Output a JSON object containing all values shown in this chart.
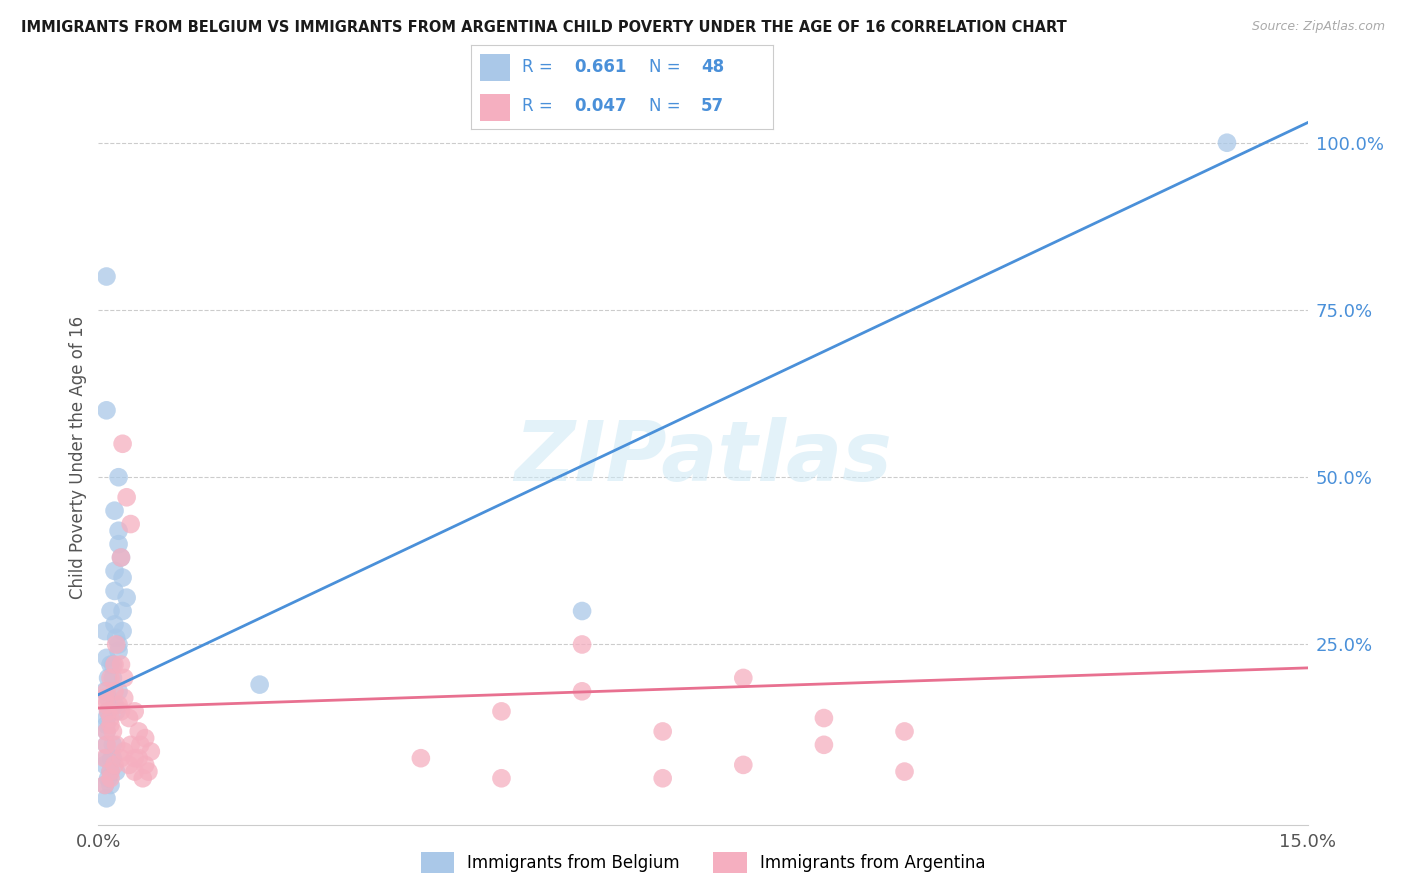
{
  "title": "IMMIGRANTS FROM BELGIUM VS IMMIGRANTS FROM ARGENTINA CHILD POVERTY UNDER THE AGE OF 16 CORRELATION CHART",
  "source": "Source: ZipAtlas.com",
  "ylabel": "Child Poverty Under the Age of 16",
  "yticklabels_right": [
    "25.0%",
    "50.0%",
    "75.0%",
    "100.0%"
  ],
  "yticks": [
    0.25,
    0.5,
    0.75,
    1.0
  ],
  "xlim": [
    0.0,
    0.15
  ],
  "ylim": [
    -0.02,
    1.08
  ],
  "belgium_color": "#aac8e8",
  "argentina_color": "#f5afc0",
  "belgium_line_color": "#4a90d9",
  "argentina_line_color": "#e87090",
  "legend_R_bel": "0.661",
  "legend_N_bel": "48",
  "legend_R_arg": "0.047",
  "legend_N_arg": "57",
  "watermark": "ZIPatlas",
  "bel_line_x": [
    0.0,
    0.15
  ],
  "bel_line_y": [
    0.175,
    1.03
  ],
  "arg_line_x": [
    0.0,
    0.15
  ],
  "arg_line_y": [
    0.155,
    0.215
  ],
  "belgium_scatter_x": [
    0.0008,
    0.001,
    0.0012,
    0.0015,
    0.0018,
    0.002,
    0.0022,
    0.0008,
    0.001,
    0.0015,
    0.0018,
    0.002,
    0.0025,
    0.001,
    0.0008,
    0.0012,
    0.0015,
    0.001,
    0.002,
    0.0025,
    0.001,
    0.002,
    0.0025,
    0.003,
    0.0025,
    0.003,
    0.0035,
    0.0028,
    0.002,
    0.003,
    0.0008,
    0.001,
    0.0015,
    0.001,
    0.0012,
    0.0018,
    0.0022,
    0.0016,
    0.0012,
    0.0025,
    0.0022,
    0.0018,
    0.06,
    0.02,
    0.001,
    0.0025,
    0.001,
    0.14
  ],
  "belgium_scatter_y": [
    0.18,
    0.14,
    0.2,
    0.22,
    0.08,
    0.16,
    0.26,
    0.27,
    0.12,
    0.3,
    0.22,
    0.33,
    0.18,
    0.1,
    0.07,
    0.05,
    0.06,
    0.08,
    0.28,
    0.25,
    0.23,
    0.36,
    0.4,
    0.35,
    0.42,
    0.3,
    0.32,
    0.38,
    0.45,
    0.27,
    0.04,
    0.02,
    0.04,
    0.13,
    0.15,
    0.1,
    0.06,
    0.08,
    0.17,
    0.24,
    0.15,
    0.2,
    0.3,
    0.19,
    0.6,
    0.5,
    0.8,
    1.0
  ],
  "argentina_scatter_x": [
    0.0008,
    0.0012,
    0.001,
    0.0015,
    0.001,
    0.002,
    0.0015,
    0.0008,
    0.001,
    0.0015,
    0.0008,
    0.0015,
    0.002,
    0.001,
    0.0015,
    0.002,
    0.0025,
    0.0022,
    0.0018,
    0.0028,
    0.0032,
    0.0022,
    0.0028,
    0.0032,
    0.0038,
    0.0028,
    0.0032,
    0.004,
    0.0045,
    0.0038,
    0.0045,
    0.005,
    0.0045,
    0.0052,
    0.0058,
    0.005,
    0.0055,
    0.0062,
    0.0065,
    0.0058,
    0.003,
    0.0035,
    0.0028,
    0.004,
    0.08,
    0.05,
    0.09,
    0.07,
    0.04,
    0.06,
    0.06,
    0.08,
    0.1,
    0.1,
    0.07,
    0.05,
    0.09
  ],
  "argentina_scatter_y": [
    0.17,
    0.15,
    0.12,
    0.2,
    0.18,
    0.22,
    0.14,
    0.08,
    0.1,
    0.06,
    0.04,
    0.05,
    0.07,
    0.16,
    0.13,
    0.18,
    0.16,
    0.1,
    0.12,
    0.22,
    0.2,
    0.25,
    0.15,
    0.17,
    0.14,
    0.08,
    0.09,
    0.1,
    0.06,
    0.07,
    0.08,
    0.12,
    0.15,
    0.1,
    0.07,
    0.08,
    0.05,
    0.06,
    0.09,
    0.11,
    0.55,
    0.47,
    0.38,
    0.43,
    0.2,
    0.15,
    0.1,
    0.05,
    0.08,
    0.18,
    0.25,
    0.07,
    0.12,
    0.06,
    0.12,
    0.05,
    0.14
  ]
}
